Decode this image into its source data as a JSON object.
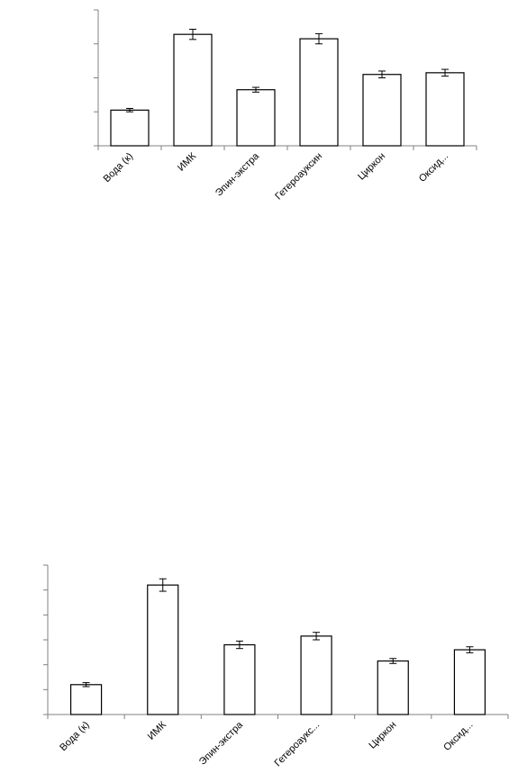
{
  "chart_data": [
    {
      "type": "bar",
      "categories": [
        "Вода (к)",
        "ИМК",
        "Эпин-экстра",
        "Гетероауксин",
        "Циркон",
        "Оксид..."
      ],
      "values": [
        1.05,
        3.28,
        1.65,
        3.15,
        2.1,
        2.15
      ],
      "errors": [
        0.05,
        0.15,
        0.07,
        0.15,
        0.1,
        0.1
      ],
      "ylim": [
        0,
        4
      ],
      "yticks": 5,
      "title": "",
      "xlabel": "",
      "ylabel": "",
      "grid": false,
      "colors": {
        "bar_fill": "#ffffff",
        "bar_stroke": "#000000",
        "axis": "#808080"
      }
    },
    {
      "type": "bar",
      "categories": [
        "Вода (к)",
        "ИМК",
        "Эпин-экстра",
        "Гетероаукс...",
        "Циркон",
        "Оксид..."
      ],
      "values": [
        1.2,
        5.2,
        2.8,
        3.15,
        2.15,
        2.6
      ],
      "errors": [
        0.08,
        0.25,
        0.15,
        0.15,
        0.1,
        0.12
      ],
      "ylim": [
        0,
        6
      ],
      "yticks": 7,
      "title": "",
      "xlabel": "",
      "ylabel": "",
      "grid": false,
      "colors": {
        "bar_fill": "#ffffff",
        "bar_stroke": "#000000",
        "axis": "#808080"
      }
    }
  ]
}
